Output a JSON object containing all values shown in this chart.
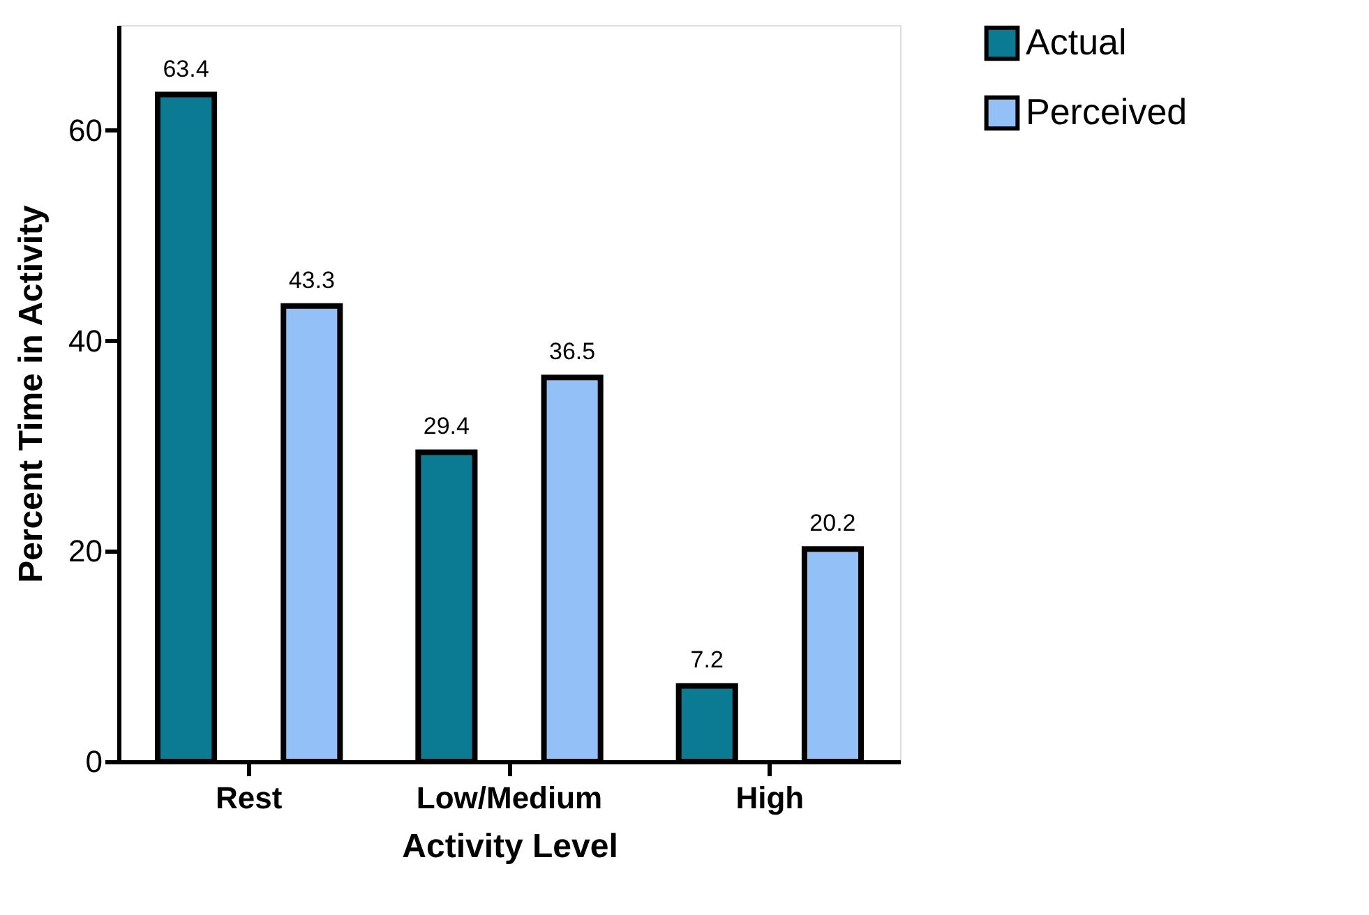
{
  "chart_data": {
    "type": "bar",
    "xlabel": "Activity Level",
    "ylabel": "Percent Time in Activity",
    "categories": [
      "Rest",
      "Low/Medium",
      "High"
    ],
    "series": [
      {
        "name": "Actual",
        "color": "#0a7b93",
        "values": [
          63.4,
          29.4,
          7.2
        ]
      },
      {
        "name": "Perceived",
        "color": "#93c1f7",
        "values": [
          43.3,
          36.5,
          20.2
        ]
      }
    ],
    "ylim": [
      0,
      70
    ],
    "yticks": [
      0,
      20,
      40,
      60
    ],
    "grid": false,
    "legend": "top right",
    "data_labels": true
  }
}
